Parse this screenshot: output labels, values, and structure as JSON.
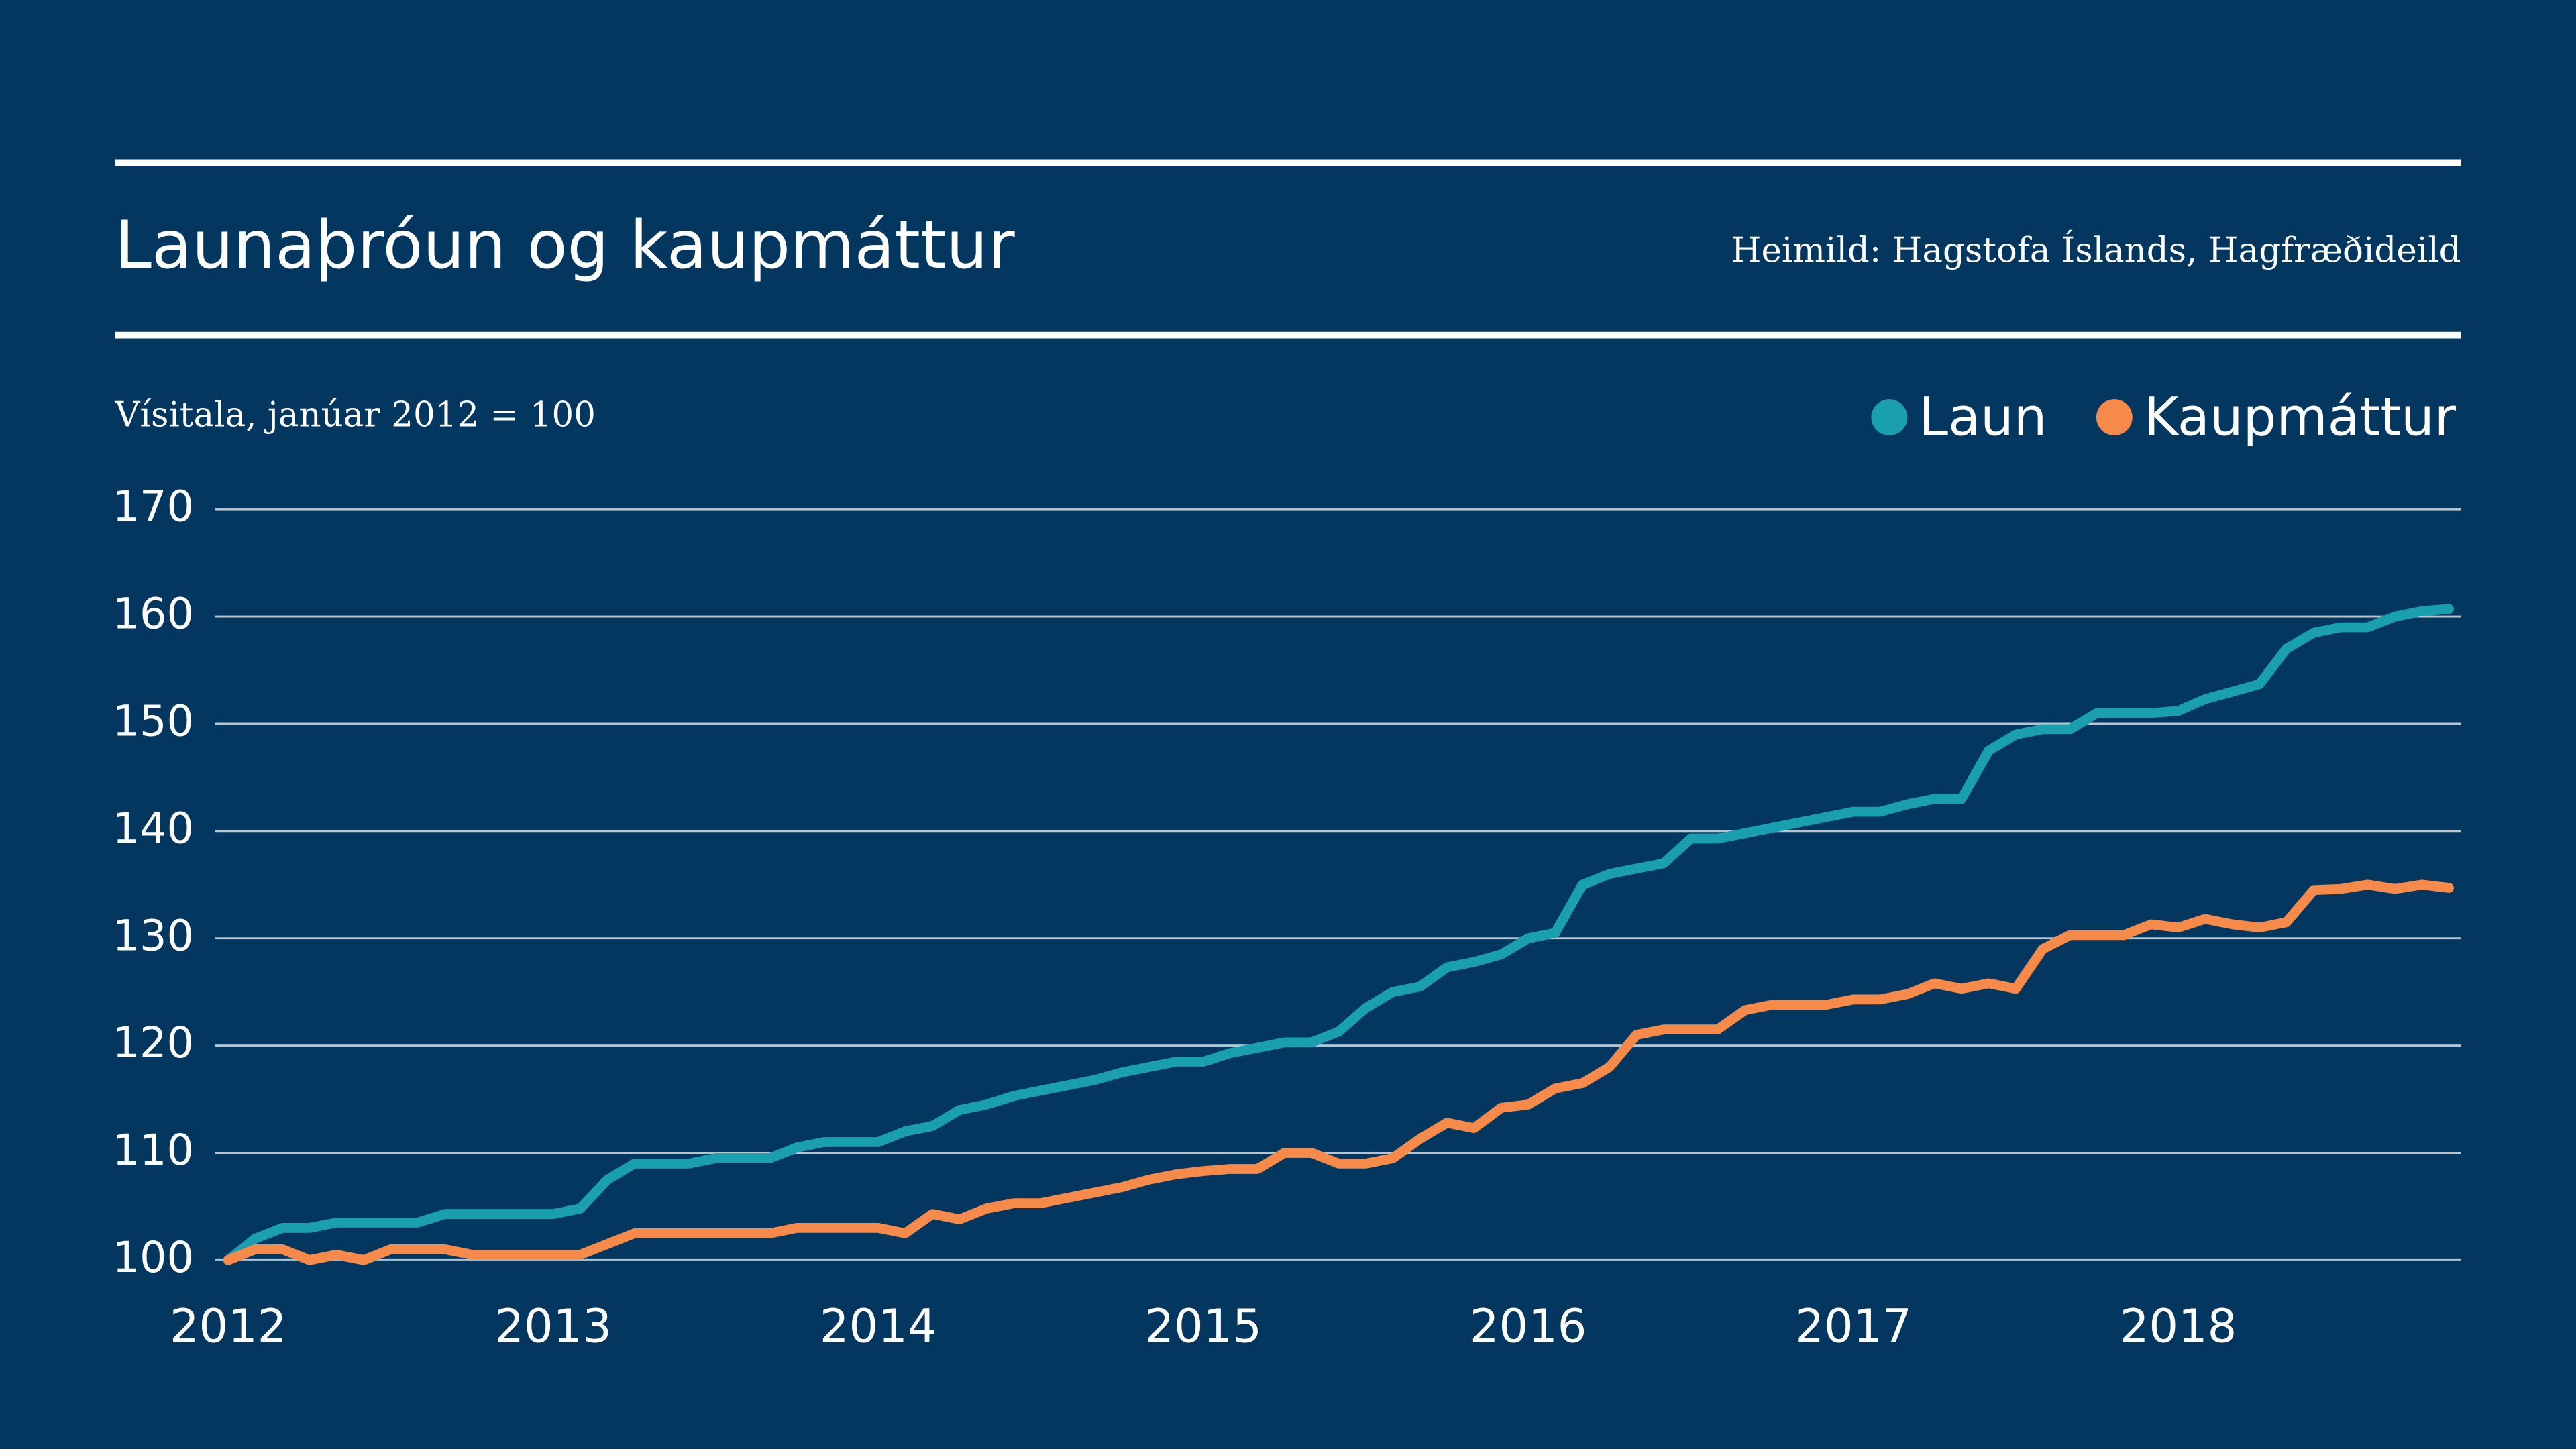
{
  "chart_data": {
    "type": "line",
    "title": "Launaþróun og kaupmáttur",
    "source": "Heimild: Hagstofa Íslands, Hagfræðideild",
    "y_label": "Vísitala, janúar 2012 = 100",
    "x": [
      2012,
      2012.083,
      2012.167,
      2012.25,
      2012.333,
      2012.417,
      2012.5,
      2012.583,
      2012.667,
      2012.75,
      2012.833,
      2012.917,
      2013,
      2013.083,
      2013.167,
      2013.25,
      2013.333,
      2013.417,
      2013.5,
      2013.583,
      2013.667,
      2013.75,
      2013.833,
      2013.917,
      2014,
      2014.083,
      2014.167,
      2014.25,
      2014.333,
      2014.417,
      2014.5,
      2014.583,
      2014.667,
      2014.75,
      2014.833,
      2014.917,
      2015,
      2015.083,
      2015.167,
      2015.25,
      2015.333,
      2015.417,
      2015.5,
      2015.583,
      2015.667,
      2015.75,
      2015.833,
      2015.917,
      2016,
      2016.083,
      2016.167,
      2016.25,
      2016.333,
      2016.417,
      2016.5,
      2016.583,
      2016.667,
      2016.75,
      2016.833,
      2016.917,
      2017,
      2017.083,
      2017.167,
      2017.25,
      2017.333,
      2017.417,
      2017.5,
      2017.583,
      2017.667,
      2017.75,
      2017.833,
      2017.917,
      2018,
      2018.083,
      2018.167,
      2018.25,
      2018.333,
      2018.417,
      2018.5,
      2018.583,
      2018.667,
      2018.75,
      2018.833
    ],
    "series": [
      {
        "name": "Laun",
        "color": "#1a9fb0",
        "values": [
          100,
          102,
          103,
          103,
          103.5,
          103.5,
          103.5,
          103.5,
          104.3,
          104.3,
          104.3,
          104.3,
          104.3,
          104.8,
          107.5,
          109,
          109,
          109,
          109.5,
          109.5,
          109.5,
          110.5,
          111,
          111,
          111,
          112,
          112.5,
          114,
          114.5,
          115.3,
          115.8,
          116.3,
          116.8,
          117.5,
          118,
          118.5,
          118.5,
          119.3,
          119.8,
          120.3,
          120.3,
          121.3,
          123.5,
          125,
          125.5,
          127.3,
          127.8,
          128.5,
          130,
          130.5,
          135,
          136,
          136.5,
          137,
          139.3,
          139.3,
          139.8,
          140.3,
          140.8,
          141.3,
          141.8,
          141.8,
          142.5,
          143,
          143,
          147.5,
          149,
          149.5,
          149.5,
          151,
          151,
          151,
          151.2,
          152.3,
          153,
          153.7,
          157,
          158.5,
          159,
          159,
          160,
          160.5,
          160.7
        ]
      },
      {
        "name": "Kaupmáttur",
        "color": "#f58a4b",
        "values": [
          100,
          101,
          101,
          100,
          100.5,
          100,
          101,
          101,
          101,
          100.5,
          100.5,
          100.5,
          100.5,
          100.5,
          101.5,
          102.5,
          102.5,
          102.5,
          102.5,
          102.5,
          102.5,
          103,
          103,
          103,
          103,
          102.5,
          104.3,
          103.8,
          104.8,
          105.3,
          105.3,
          105.8,
          106.3,
          106.8,
          107.5,
          108,
          108.3,
          108.5,
          108.5,
          110,
          110,
          109,
          109,
          109.5,
          111.3,
          112.8,
          112.3,
          114.2,
          114.5,
          116,
          116.5,
          118,
          121,
          121.5,
          121.5,
          121.5,
          123.3,
          123.8,
          123.8,
          123.8,
          124.3,
          124.3,
          124.8,
          125.8,
          125.3,
          125.8,
          125.3,
          129,
          130.3,
          130.3,
          130.3,
          131.3,
          131,
          131.8,
          131.3,
          131,
          131.5,
          134.5,
          134.6,
          135,
          134.6,
          135,
          134.7
        ]
      }
    ],
    "xlim": [
      2011.96,
      2018.87
    ],
    "xticks": [
      2012,
      2013,
      2014,
      2015,
      2016,
      2017,
      2018
    ],
    "ylim": [
      100,
      170
    ],
    "yticks": [
      100,
      110,
      120,
      130,
      140,
      150,
      160,
      170
    ],
    "grid": true,
    "legend": "top-right"
  }
}
